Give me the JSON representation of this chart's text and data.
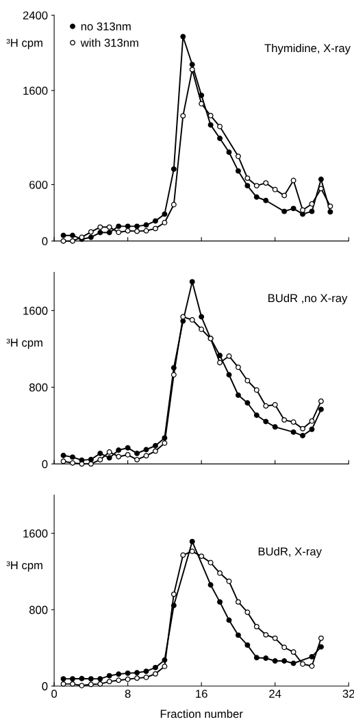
{
  "chart_data": [
    {
      "type": "line",
      "title": "Thymidine, X-ray",
      "ylabel": "³H cpm",
      "xlim": [
        0,
        32
      ],
      "xticks": [
        0,
        8,
        16,
        24,
        32
      ],
      "ylim": [
        0,
        2400
      ],
      "yticks": [
        0,
        600,
        1600,
        2400
      ],
      "tick_labels": "y",
      "legend": "top left",
      "marker": "circle",
      "grid": false,
      "series": [
        {
          "name": "no 313nm",
          "color": "#000000",
          "x": [
            1,
            2,
            3,
            4,
            5,
            6,
            7,
            8,
            9,
            10,
            11,
            12,
            13,
            14,
            15,
            16,
            17,
            18,
            19,
            20,
            21,
            22,
            23,
            25,
            26,
            27,
            28,
            29,
            30
          ],
          "values": [
            60,
            60,
            20,
            40,
            90,
            90,
            157,
            157,
            157,
            170,
            213,
            286,
            765,
            2173,
            1876,
            1549,
            1234,
            1091,
            944,
            745,
            588,
            467,
            431,
            315,
            346,
            286,
            315,
            656,
            310
          ]
        },
        {
          "name": "with 313nm",
          "color": "#ffffff",
          "x": [
            1,
            2,
            3,
            4,
            5,
            6,
            7,
            8,
            9,
            10,
            11,
            12,
            13,
            14,
            15,
            16,
            17,
            18,
            20,
            21,
            22,
            23,
            24,
            25,
            26,
            27,
            28,
            29,
            30
          ],
          "values": [
            0,
            0,
            40,
            97,
            148,
            148,
            92,
            109,
            104,
            109,
            133,
            196,
            387,
            1331,
            1822,
            1459,
            1333,
            1217,
            900,
            668,
            588,
            617,
            547,
            484,
            644,
            329,
            394,
            557,
            370
          ]
        }
      ]
    },
    {
      "type": "line",
      "title": "BUdR ,no X-ray",
      "ylabel": "³H cpm",
      "xlim": [
        0,
        32
      ],
      "xticks": [
        0,
        8,
        16,
        24,
        32
      ],
      "ylim": [
        0,
        2000
      ],
      "yticks": [
        0,
        800,
        1600
      ],
      "tick_labels": "y",
      "marker": "circle",
      "grid": false,
      "series": [
        {
          "color": "#000000",
          "x": [
            1,
            2,
            3,
            4,
            5,
            6,
            7,
            8,
            9,
            10,
            11,
            12,
            13,
            14,
            15,
            16,
            17,
            18,
            19,
            20,
            21,
            22,
            23,
            24,
            26,
            27,
            28,
            29
          ],
          "values": [
            88,
            71,
            39,
            46,
            110,
            63,
            144,
            168,
            110,
            149,
            190,
            271,
            1003,
            1491,
            1901,
            1535,
            1308,
            1132,
            930,
            717,
            637,
            508,
            442,
            386,
            332,
            295,
            361,
            569
          ]
        },
        {
          "color": "#ffffff",
          "x": [
            1,
            2,
            3,
            4,
            5,
            6,
            7,
            8,
            9,
            10,
            11,
            12,
            13,
            14,
            15,
            16,
            17,
            18,
            19,
            20,
            21,
            22,
            23,
            24,
            25,
            26,
            27,
            28,
            29
          ],
          "values": [
            27,
            10,
            0,
            0,
            44,
            124,
            76,
            95,
            44,
            85,
            134,
            217,
            930,
            1535,
            1503,
            1405,
            1308,
            1057,
            1125,
            1008,
            869,
            771,
            605,
            617,
            459,
            437,
            368,
            447,
            654
          ]
        }
      ]
    },
    {
      "type": "line",
      "title": "BUdR, X-ray",
      "ylabel": "³H cpm",
      "xlabel": "Fraction number",
      "xlim": [
        0,
        32
      ],
      "xticks": [
        0,
        8,
        16,
        24,
        32
      ],
      "ylim": [
        0,
        2000
      ],
      "yticks": [
        0,
        800,
        1600
      ],
      "marker": "circle",
      "grid": false,
      "series": [
        {
          "color": "#000000",
          "x": [
            1,
            2,
            3,
            4,
            5,
            6,
            7,
            8,
            9,
            10,
            11,
            12,
            13,
            15,
            17,
            18,
            19,
            20,
            21,
            22,
            23,
            24,
            25,
            26,
            28,
            29
          ],
          "values": [
            76,
            76,
            79,
            76,
            76,
            108,
            125,
            135,
            140,
            155,
            194,
            272,
            844,
            1514,
            1060,
            881,
            690,
            533,
            429,
            297,
            292,
            263,
            263,
            238,
            307,
            410
          ]
        },
        {
          "color": "#ffffff",
          "x": [
            1,
            2,
            3,
            4,
            5,
            6,
            7,
            8,
            9,
            10,
            11,
            12,
            13,
            14,
            15,
            16,
            17,
            18,
            19,
            20,
            21,
            22,
            23,
            24,
            25,
            26,
            27,
            28,
            29
          ],
          "values": [
            22,
            22,
            5,
            17,
            22,
            47,
            61,
            71,
            83,
            91,
            128,
            206,
            962,
            1372,
            1411,
            1360,
            1293,
            1183,
            1097,
            881,
            773,
            623,
            537,
            501,
            405,
            356,
            231,
            209,
            501
          ]
        }
      ]
    }
  ]
}
